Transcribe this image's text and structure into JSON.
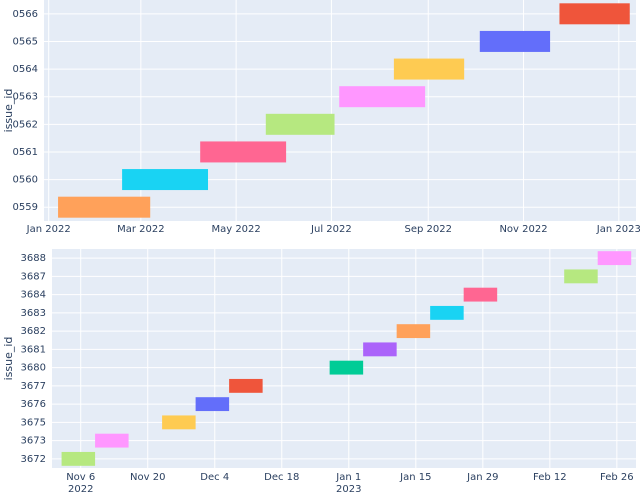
{
  "chart_data": [
    {
      "type": "timeline",
      "y_label": "issue_id",
      "categories": [
        "0559",
        "0560",
        "0561",
        "0562",
        "0563",
        "0564",
        "0565",
        "0566"
      ],
      "start": [
        "2022-01-07",
        "2022-02-17",
        "2022-04-08",
        "2022-05-20",
        "2022-07-06",
        "2022-08-10",
        "2022-10-04",
        "2022-11-24"
      ],
      "end": [
        "2022-03-07",
        "2022-04-13",
        "2022-06-02",
        "2022-07-03",
        "2022-08-30",
        "2022-09-24",
        "2022-11-18",
        "2023-01-08"
      ],
      "colors": [
        "#FFA15A",
        "#19D3F3",
        "#FF6692",
        "#B6E880",
        "#FF97FF",
        "#FECB52",
        "#636EFA",
        "#EF553B"
      ],
      "xlim": [
        "2021-12-29",
        "2023-01-12"
      ],
      "xticks": [
        {
          "value": "2022-01-01",
          "label": "Jan 2022"
        },
        {
          "value": "2022-03-01",
          "label": "Mar 2022"
        },
        {
          "value": "2022-05-01",
          "label": "May 2022"
        },
        {
          "value": "2022-07-01",
          "label": "Jul 2022"
        },
        {
          "value": "2022-09-01",
          "label": "Sep 2022"
        },
        {
          "value": "2022-11-01",
          "label": "Nov 2022"
        },
        {
          "value": "2023-01-01",
          "label": "Jan 2023"
        }
      ],
      "grid": true
    },
    {
      "type": "timeline",
      "y_label": "issue_id",
      "categories": [
        "3672",
        "3673",
        "3675",
        "3676",
        "3677",
        "3680",
        "3681",
        "3682",
        "3683",
        "3684",
        "3687",
        "3688"
      ],
      "start": [
        "2022-11-02",
        "2022-11-09",
        "2022-11-23",
        "2022-11-30",
        "2022-12-07",
        "2022-12-28",
        "2023-01-04",
        "2023-01-11",
        "2023-01-18",
        "2023-01-25",
        "2023-02-15",
        "2023-02-22"
      ],
      "end": [
        "2022-11-09",
        "2022-11-16",
        "2022-11-30",
        "2022-12-07",
        "2022-12-14",
        "2023-01-04",
        "2023-01-11",
        "2023-01-18",
        "2023-01-25",
        "2023-02-01",
        "2023-02-22",
        "2023-03-01"
      ],
      "colors": [
        "#B6E880",
        "#FF97FF",
        "#FECB52",
        "#636EFA",
        "#EF553B",
        "#00CC96",
        "#AB63FA",
        "#FFA15A",
        "#19D3F3",
        "#FF6692",
        "#B6E880",
        "#FF97FF"
      ],
      "xlim": [
        "2022-10-31",
        "2023-03-02"
      ],
      "xticks": [
        {
          "value": "2022-11-06",
          "label": "Nov 6\n2022"
        },
        {
          "value": "2022-11-20",
          "label": "Nov 20"
        },
        {
          "value": "2022-12-04",
          "label": "Dec 4"
        },
        {
          "value": "2022-12-18",
          "label": "Dec 18"
        },
        {
          "value": "2023-01-01",
          "label": "Jan 1\n2023"
        },
        {
          "value": "2023-01-15",
          "label": "Jan 15"
        },
        {
          "value": "2023-01-29",
          "label": "Jan 29"
        },
        {
          "value": "2023-02-12",
          "label": "Feb 12"
        },
        {
          "value": "2023-02-26",
          "label": "Feb 26"
        }
      ],
      "grid": true
    }
  ]
}
